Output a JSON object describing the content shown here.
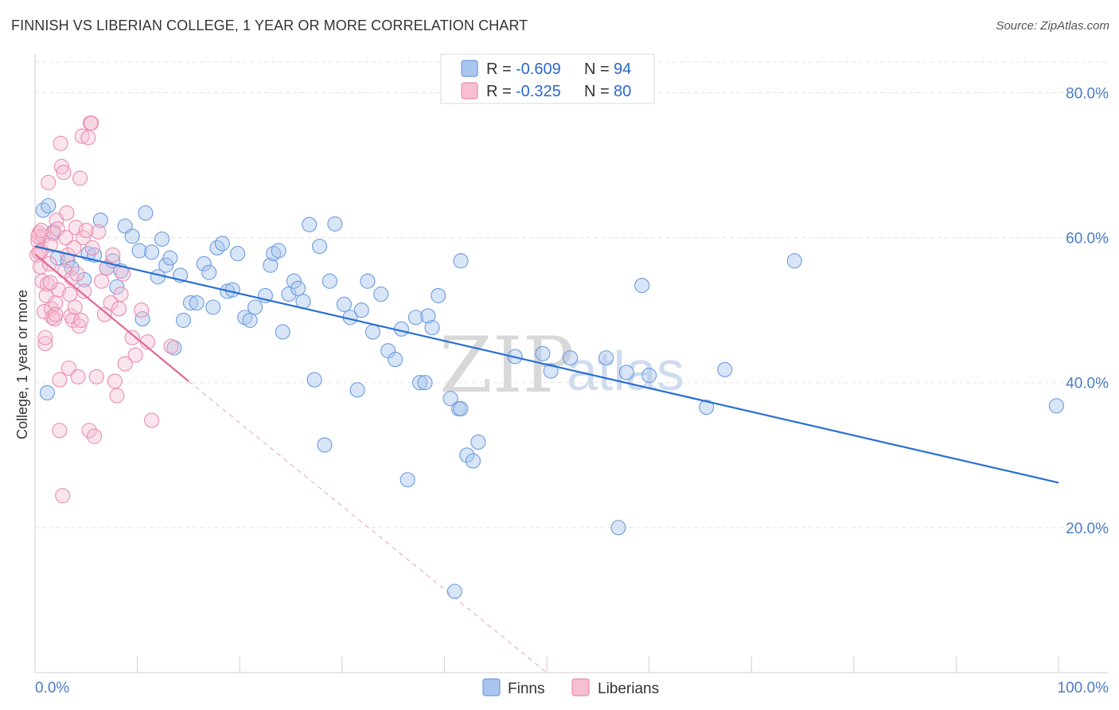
{
  "title": "FINNISH VS LIBERIAN COLLEGE, 1 YEAR OR MORE CORRELATION CHART",
  "source": "Source: ZipAtlas.com",
  "watermark": {
    "part1": "ZIP",
    "part2": "atlas"
  },
  "legend_top": {
    "finns": {
      "r_label": "R = ",
      "r_value": "-0.609",
      "n_label": "N = ",
      "n_value": "94"
    },
    "liberians": {
      "r_label": "R = ",
      "r_value": "-0.325",
      "n_label": "N = ",
      "n_value": "80"
    }
  },
  "chart_data": {
    "type": "scatter",
    "title": "FINNISH VS LIBERIAN COLLEGE, 1 YEAR OR MORE CORRELATION CHART",
    "xlabel": "",
    "ylabel": "College, 1 year or more",
    "xlim": [
      0,
      100
    ],
    "ylim": [
      0,
      84
    ],
    "x_tick_labels": [
      "0.0%",
      "100.0%"
    ],
    "y_ticks": [
      20,
      40,
      60,
      80
    ],
    "y_tick_labels": [
      "20.0%",
      "40.0%",
      "60.0%",
      "80.0%"
    ],
    "grid": true,
    "legend_position": "bottom-center",
    "colors": {
      "finns": "#a9c6ee",
      "finns_stroke": "#6b9be0",
      "finns_line": "#2a6fd1",
      "liberians": "#f6bfd2",
      "liberians_stroke": "#ea8cb0",
      "liberians_line": "#e06a95"
    },
    "series": [
      {
        "name": "Finns",
        "r": -0.609,
        "n": 94,
        "trend": {
          "x": [
            0,
            100
          ],
          "y": [
            58.8,
            26.2
          ]
        },
        "points": [
          [
            0.8,
            63.8
          ],
          [
            1.3,
            64.4
          ],
          [
            1.8,
            60.8
          ],
          [
            2.2,
            57.2
          ],
          [
            3.2,
            56.8
          ],
          [
            3.6,
            55.8
          ],
          [
            4.8,
            54.2
          ],
          [
            5.2,
            57.8
          ],
          [
            5.8,
            57.6
          ],
          [
            6.4,
            62.4
          ],
          [
            7.0,
            55.8
          ],
          [
            7.6,
            56.8
          ],
          [
            8.0,
            53.2
          ],
          [
            8.4,
            55.4
          ],
          [
            8.8,
            61.6
          ],
          [
            9.5,
            60.2
          ],
          [
            10.2,
            58.2
          ],
          [
            10.5,
            48.8
          ],
          [
            10.8,
            63.4
          ],
          [
            11.4,
            58.0
          ],
          [
            12.0,
            54.6
          ],
          [
            12.4,
            59.8
          ],
          [
            12.8,
            56.2
          ],
          [
            13.2,
            57.2
          ],
          [
            13.6,
            44.8
          ],
          [
            14.2,
            54.8
          ],
          [
            14.5,
            48.6
          ],
          [
            15.2,
            51.0
          ],
          [
            15.8,
            51.0
          ],
          [
            16.5,
            56.4
          ],
          [
            17.0,
            55.2
          ],
          [
            17.4,
            50.4
          ],
          [
            17.8,
            58.6
          ],
          [
            18.3,
            59.2
          ],
          [
            18.8,
            52.6
          ],
          [
            19.3,
            52.8
          ],
          [
            19.8,
            57.8
          ],
          [
            20.5,
            49.0
          ],
          [
            21.0,
            48.6
          ],
          [
            21.5,
            50.4
          ],
          [
            22.5,
            52.0
          ],
          [
            23.0,
            56.2
          ],
          [
            23.3,
            57.8
          ],
          [
            23.8,
            58.2
          ],
          [
            24.2,
            47.0
          ],
          [
            24.8,
            52.2
          ],
          [
            25.3,
            54.0
          ],
          [
            25.7,
            53.0
          ],
          [
            26.2,
            51.2
          ],
          [
            26.8,
            61.8
          ],
          [
            27.3,
            40.4
          ],
          [
            27.8,
            58.8
          ],
          [
            28.3,
            31.4
          ],
          [
            28.8,
            54.0
          ],
          [
            29.3,
            61.9
          ],
          [
            30.2,
            50.8
          ],
          [
            30.8,
            49.0
          ],
          [
            31.5,
            39.0
          ],
          [
            31.9,
            50.0
          ],
          [
            32.5,
            54.0
          ],
          [
            33.0,
            47.0
          ],
          [
            33.8,
            52.2
          ],
          [
            34.5,
            44.4
          ],
          [
            35.2,
            43.2
          ],
          [
            35.8,
            47.4
          ],
          [
            37.2,
            49.0
          ],
          [
            37.6,
            40.0
          ],
          [
            38.1,
            40.0
          ],
          [
            38.4,
            49.2
          ],
          [
            38.8,
            47.6
          ],
          [
            39.4,
            52.0
          ],
          [
            40.6,
            37.8
          ],
          [
            41.4,
            36.4
          ],
          [
            41.6,
            56.8
          ],
          [
            42.2,
            30.0
          ],
          [
            42.8,
            29.2
          ],
          [
            43.3,
            31.8
          ],
          [
            36.4,
            26.6
          ],
          [
            41.6,
            36.4
          ],
          [
            46.9,
            43.6
          ],
          [
            49.6,
            44.0
          ],
          [
            50.4,
            41.6
          ],
          [
            52.3,
            43.4
          ],
          [
            55.8,
            43.4
          ],
          [
            57.8,
            41.4
          ],
          [
            59.3,
            53.4
          ],
          [
            65.6,
            36.6
          ],
          [
            67.4,
            41.8
          ],
          [
            74.2,
            56.8
          ],
          [
            99.8,
            36.8
          ],
          [
            57.0,
            20.0
          ],
          [
            41.0,
            11.2
          ],
          [
            1.2,
            38.6
          ],
          [
            60.0,
            41.0
          ]
        ]
      },
      {
        "name": "Liberians",
        "r": -0.325,
        "n": 80,
        "trend": {
          "x": [
            0,
            15
          ],
          "y": [
            57.7,
            40.2
          ]
        },
        "trend_extension": {
          "x": [
            15,
            50
          ],
          "y": [
            40.2,
            0
          ]
        },
        "points": [
          [
            0.2,
            57.6
          ],
          [
            0.3,
            59.5
          ],
          [
            0.4,
            60.6
          ],
          [
            0.5,
            56.0
          ],
          [
            0.6,
            58.2
          ],
          [
            0.7,
            54.0
          ],
          [
            0.8,
            60.2
          ],
          [
            0.9,
            49.8
          ],
          [
            1.0,
            45.4
          ],
          [
            1.1,
            52.0
          ],
          [
            1.2,
            53.6
          ],
          [
            1.3,
            67.6
          ],
          [
            1.4,
            56.4
          ],
          [
            1.5,
            59.0
          ],
          [
            1.6,
            50.2
          ],
          [
            1.7,
            49.0
          ],
          [
            1.8,
            60.6
          ],
          [
            1.9,
            48.8
          ],
          [
            2.0,
            51.0
          ],
          [
            2.1,
            62.4
          ],
          [
            2.2,
            61.2
          ],
          [
            2.3,
            52.8
          ],
          [
            2.4,
            33.4
          ],
          [
            2.5,
            73.0
          ],
          [
            2.6,
            69.8
          ],
          [
            2.7,
            24.4
          ],
          [
            2.8,
            69.0
          ],
          [
            2.9,
            55.4
          ],
          [
            3.0,
            60.0
          ],
          [
            3.1,
            63.4
          ],
          [
            3.2,
            57.6
          ],
          [
            3.3,
            42.0
          ],
          [
            3.4,
            52.2
          ],
          [
            3.5,
            49.2
          ],
          [
            3.6,
            54.4
          ],
          [
            3.7,
            48.6
          ],
          [
            3.8,
            58.6
          ],
          [
            3.9,
            50.4
          ],
          [
            4.0,
            61.4
          ],
          [
            4.1,
            55.0
          ],
          [
            4.2,
            40.8
          ],
          [
            4.3,
            47.8
          ],
          [
            4.4,
            68.2
          ],
          [
            4.5,
            48.6
          ],
          [
            4.6,
            74.0
          ],
          [
            4.7,
            60.0
          ],
          [
            4.8,
            52.6
          ],
          [
            5.0,
            61.0
          ],
          [
            5.2,
            73.8
          ],
          [
            5.3,
            33.4
          ],
          [
            5.4,
            75.8
          ],
          [
            5.5,
            75.8
          ],
          [
            5.6,
            58.6
          ],
          [
            5.8,
            32.6
          ],
          [
            6.0,
            40.8
          ],
          [
            6.2,
            60.8
          ],
          [
            6.5,
            54.0
          ],
          [
            6.8,
            49.4
          ],
          [
            7.0,
            55.8
          ],
          [
            7.4,
            51.0
          ],
          [
            7.6,
            57.6
          ],
          [
            7.8,
            40.2
          ],
          [
            8.0,
            38.2
          ],
          [
            8.2,
            50.2
          ],
          [
            8.4,
            52.2
          ],
          [
            8.6,
            55.0
          ],
          [
            8.8,
            42.6
          ],
          [
            9.5,
            46.2
          ],
          [
            9.8,
            43.8
          ],
          [
            10.4,
            50.0
          ],
          [
            11.0,
            45.6
          ],
          [
            11.4,
            34.8
          ],
          [
            13.3,
            45.0
          ],
          [
            0.3,
            60.2
          ],
          [
            0.6,
            61.0
          ],
          [
            1.5,
            53.8
          ],
          [
            2.0,
            49.4
          ],
          [
            0.4,
            58.0
          ],
          [
            1.0,
            46.2
          ],
          [
            2.4,
            40.4
          ]
        ]
      }
    ]
  },
  "bottom_legend": {
    "finns": "Finns",
    "liberians": "Liberians"
  }
}
